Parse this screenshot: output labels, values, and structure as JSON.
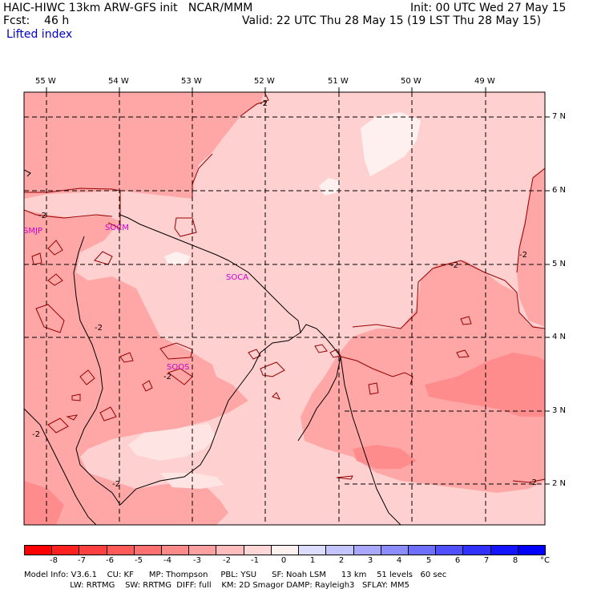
{
  "header": {
    "left_line1": "HAIC-HIWC 13km ARW-GFS init   NCAR/MMM",
    "left_line2": "Fcst:    46 h",
    "field_name": "Lifted index",
    "right_line1": "Init: 00 UTC Wed 27 May 15",
    "right_line2": "Valid: 22 UTC Thu 28 May 15 (19 LST Thu 28 May 15)"
  },
  "map": {
    "lon_labels": [
      "55 W",
      "54 W",
      "53 W",
      "52 W",
      "51 W",
      "50 W",
      "49 W"
    ],
    "lat_labels": [
      "7 N",
      "6 N",
      "5 N",
      "4 N",
      "3 N",
      "2 N"
    ],
    "stations": [
      "SMJP",
      "SOCM",
      "SOCA",
      "SOOS"
    ],
    "contour_label": "-2"
  },
  "colorbar": {
    "values": [
      "-8",
      "-7",
      "-6",
      "-5",
      "-4",
      "-3",
      "-2",
      "-1",
      "0",
      "1",
      "2",
      "3",
      "4",
      "5",
      "6",
      "7",
      "8"
    ],
    "unit": "°C",
    "colors": [
      "#ff0000",
      "#ff2020",
      "#ff4040",
      "#ff5a5a",
      "#ff7070",
      "#ff8a8a",
      "#ffa0a0",
      "#ffbcbc",
      "#ffd6d6",
      "#fff0f0",
      "#dcdcff",
      "#c4c4ff",
      "#a8a8ff",
      "#8c8cff",
      "#6e6eff",
      "#5050ff",
      "#3232ff",
      "#1414ff",
      "#0000ff"
    ]
  },
  "footer": {
    "line1": "Model Info: V3.6.1    CU: KF      MP: Thompson     PBL: YSU      SF: Noah LSM      13 km    51 levels   60 sec",
    "line2": "                  LW: RRTMG    SW: RRTMG  DIFF: full    KM: 2D Smagor DAMP: Rayleigh3   SFLAY: MM5"
  }
}
